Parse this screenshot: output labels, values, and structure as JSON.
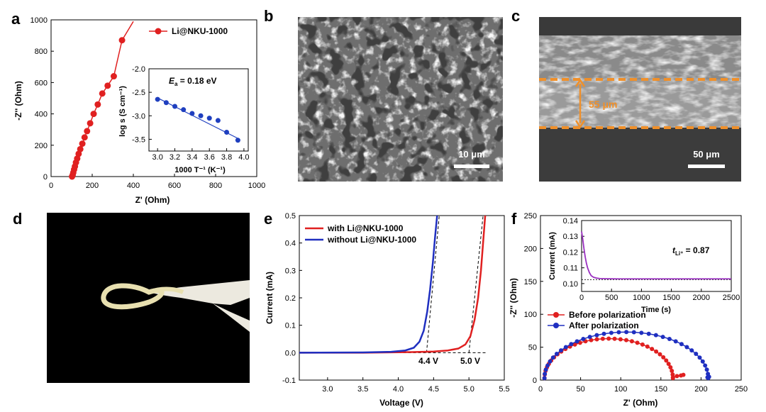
{
  "panel_letters": {
    "a": "a",
    "b": "b",
    "c": "c",
    "d": "d",
    "e": "e",
    "f": "f"
  },
  "panel_b": {
    "scale_bar": "10 μm"
  },
  "panel_c": {
    "thickness": "55 μm",
    "scale_bar": "50 μm",
    "accent_color": "#f0902a"
  },
  "chart_data": [
    {
      "panel": "a",
      "type": "line",
      "xlabel": "Z' (Ohm)",
      "ylabel": "-Z'' (Ohm)",
      "xlim": [
        0,
        1000
      ],
      "ylim": [
        0,
        1000
      ],
      "xticks": [
        "0",
        "200",
        "400",
        "600",
        "800",
        "1000"
      ],
      "yticks": [
        "0",
        "200",
        "400",
        "600",
        "800",
        "1000"
      ],
      "legend_location": "top-right",
      "series": [
        {
          "name": "Li@NKU-1000",
          "color": "#e02020",
          "x": [
            102,
            105,
            108,
            112,
            116,
            121,
            127,
            134,
            142,
            152,
            163,
            175,
            190,
            207,
            227,
            249,
            275,
            305,
            345
          ],
          "y": [
            0,
            10,
            25,
            45,
            65,
            90,
            115,
            145,
            175,
            210,
            250,
            290,
            340,
            400,
            460,
            530,
            580,
            640,
            870
          ]
        }
      ],
      "inset": {
        "type": "scatter",
        "xlabel": "1000 T⁻¹ (K⁻¹)",
        "ylabel": "log s (S cm⁻¹)",
        "xlim": [
          2.9,
          4.05
        ],
        "ylim": [
          -3.75,
          -2.0
        ],
        "xticks": [
          "3.0",
          "3.2",
          "3.4",
          "3.6",
          "3.8",
          "4.0"
        ],
        "yticks": [
          "-2.0",
          "-2.5",
          "-3.0",
          "-3.5"
        ],
        "annotation_symbol": "E",
        "annotation_subscript": "a",
        "annotation_value": " = 0.18 eV",
        "color": "#1f3fbf",
        "x": [
          3.0,
          3.1,
          3.2,
          3.3,
          3.4,
          3.5,
          3.6,
          3.7,
          3.8,
          3.93
        ],
        "y": [
          -2.65,
          -2.72,
          -2.8,
          -2.87,
          -2.95,
          -3.0,
          -3.05,
          -3.1,
          -3.35,
          -3.52
        ],
        "fit": [
          [
            3.0,
            -2.62
          ],
          [
            3.93,
            -3.48
          ]
        ]
      }
    },
    {
      "panel": "e",
      "type": "line",
      "xlabel": "Voltage (V)",
      "ylabel": "Current (mA)",
      "xlim": [
        2.6,
        5.5
      ],
      "ylim": [
        -0.1,
        0.5
      ],
      "xticks": [
        "3.0",
        "3.5",
        "4.0",
        "4.5",
        "5.0",
        "5.5"
      ],
      "yticks": [
        "-0.1",
        "0.0",
        "0.1",
        "0.2",
        "0.3",
        "0.4",
        "0.5"
      ],
      "legend_location": "top-left",
      "annotations": [
        "4.4 V",
        "5.0 V"
      ],
      "series": [
        {
          "name": "with Li@NKU-1000",
          "color": "#e02020",
          "x": [
            2.6,
            3.5,
            4.2,
            4.5,
            4.7,
            4.85,
            4.95,
            5.02,
            5.08,
            5.13,
            5.17,
            5.2,
            5.23
          ],
          "y": [
            0.0,
            0.0,
            0.002,
            0.004,
            0.008,
            0.015,
            0.03,
            0.06,
            0.12,
            0.2,
            0.3,
            0.4,
            0.5
          ]
        },
        {
          "name": "without Li@NKU-1000",
          "color": "#1f2fc0",
          "x": [
            2.6,
            3.5,
            3.9,
            4.1,
            4.22,
            4.3,
            4.36,
            4.41,
            4.45,
            4.49,
            4.52,
            4.55
          ],
          "y": [
            0.0,
            0.001,
            0.003,
            0.008,
            0.018,
            0.04,
            0.08,
            0.15,
            0.23,
            0.33,
            0.42,
            0.5
          ]
        }
      ],
      "tangents": [
        [
          [
            4.4,
            0.0
          ],
          [
            4.58,
            0.5
          ]
        ],
        [
          [
            5.0,
            0.0
          ],
          [
            5.2,
            0.5
          ]
        ],
        [
          [
            4.0,
            0.0
          ],
          [
            5.25,
            0.0
          ]
        ]
      ]
    },
    {
      "panel": "f",
      "type": "line",
      "xlabel": "Z' (Ohm)",
      "ylabel": "-Z'' (Ohm)",
      "xlim": [
        0,
        250
      ],
      "ylim": [
        0,
        250
      ],
      "xticks": [
        "0",
        "50",
        "100",
        "150",
        "200",
        "250"
      ],
      "yticks": [
        "0",
        "50",
        "100",
        "150",
        "200",
        "250"
      ],
      "legend_location": "middle-left",
      "series": [
        {
          "name": "Before polarization",
          "color": "#e02020",
          "center": 85,
          "radius": 80,
          "height": 60,
          "tail": [
            [
              165,
              4
            ],
            [
              170,
              6
            ],
            [
              175,
              7
            ],
            [
              178,
              8
            ]
          ]
        },
        {
          "name": "After polarization",
          "color": "#1f2fc0",
          "center": 107,
          "radius": 102,
          "height": 70,
          "tail": [
            [
              208,
              4
            ],
            [
              210,
              5
            ]
          ]
        }
      ],
      "inset": {
        "type": "line",
        "xlabel": "Time (s)",
        "ylabel": "Current (mA)",
        "xlim": [
          0,
          2500
        ],
        "ylim": [
          0.095,
          0.14
        ],
        "xticks": [
          "0",
          "500",
          "1000",
          "1500",
          "2000",
          "2500"
        ],
        "yticks": [
          "0.10",
          "0.11",
          "0.12",
          "0.13",
          "0.14"
        ],
        "annotation_symbol": "t",
        "annotation_subscript": "Li⁺",
        "annotation_value": " = 0.87",
        "color": "#9a30c0",
        "x": [
          0,
          20,
          40,
          60,
          80,
          100,
          130,
          160,
          200,
          250,
          300,
          400,
          600,
          1000,
          1500,
          2000,
          2500
        ],
        "y": [
          0.133,
          0.128,
          0.122,
          0.117,
          0.113,
          0.11,
          0.107,
          0.105,
          0.104,
          0.1035,
          0.1032,
          0.1031,
          0.103,
          0.103,
          0.103,
          0.103,
          0.103
        ]
      }
    }
  ]
}
